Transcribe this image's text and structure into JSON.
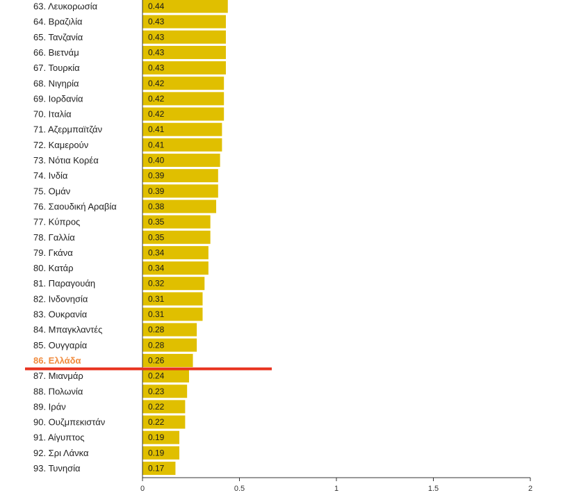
{
  "chart_data": {
    "type": "bar",
    "orientation": "horizontal",
    "categories": [
      "63. Λευκορωσία",
      "64. Βραζιλία",
      "65. Τανζανία",
      "66. Βιετνάμ",
      "67. Τουρκία",
      "68. Νιγηρία",
      "69. Ιορδανία",
      "70. Ιταλία",
      "71. Αζερμπαϊτζάν",
      "72. Καμερούν",
      "73. Νότια Κορέα",
      "74. Ινδία",
      "75. Ομάν",
      "76. Σαουδική Αραβία",
      "77. Κύπρος",
      "78. Γαλλία",
      "79. Γκάνα",
      "80. Κατάρ",
      "81. Παραγουάη",
      "82. Ινδονησία",
      "83. Ουκρανία",
      "84. Μπαγκλαντές",
      "85. Ουγγαρία",
      "86. Ελλάδα",
      "87. Μιανμάρ",
      "88. Πολωνία",
      "89. Ιράν",
      "90. Ουζμπεκιστάν",
      "91. Αίγυπτος",
      "92. Σρι Λάνκα",
      "93. Τυνησία"
    ],
    "values": [
      0.44,
      0.43,
      0.43,
      0.43,
      0.43,
      0.42,
      0.42,
      0.42,
      0.41,
      0.41,
      0.4,
      0.39,
      0.39,
      0.38,
      0.35,
      0.35,
      0.34,
      0.34,
      0.32,
      0.31,
      0.31,
      0.28,
      0.28,
      0.26,
      0.24,
      0.23,
      0.22,
      0.22,
      0.19,
      0.19,
      0.17
    ],
    "value_labels": [
      "0.44",
      "0.43",
      "0.43",
      "0.43",
      "0.43",
      "0.42",
      "0.42",
      "0.42",
      "0.41",
      "0.41",
      "0.40",
      "0.39",
      "0.39",
      "0.38",
      "0.35",
      "0.35",
      "0.34",
      "0.34",
      "0.32",
      "0.31",
      "0.31",
      "0.28",
      "0.28",
      "0.26",
      "0.24",
      "0.23",
      "0.22",
      "0.22",
      "0.19",
      "0.19",
      "0.17"
    ],
    "highlight_category": "86. Ελλάδα",
    "xlim": [
      0,
      2
    ],
    "xticks": [
      "0",
      "0.5",
      "1",
      "1.5",
      "2"
    ],
    "grid": false,
    "title": "",
    "xlabel": "",
    "ylabel": ""
  },
  "colors": {
    "bar": "#e0bf00",
    "highlight_label": "#f08a3c",
    "marker_line": "#e8321e",
    "axis": "#333333"
  }
}
